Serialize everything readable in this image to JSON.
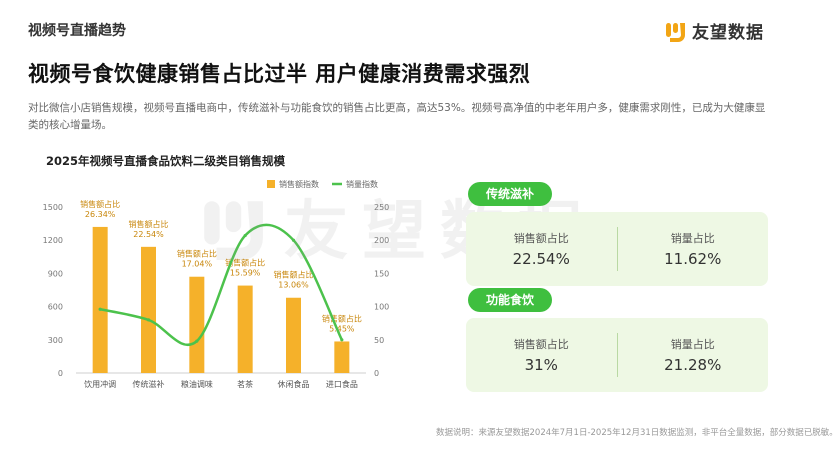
{
  "section_tag": "视频号直播趋势",
  "logo": {
    "text": "友望数据",
    "icon": "brand-logo-icon",
    "color": "#f2a515"
  },
  "headline": "视频号食饮健康销售占比过半   用户健康消费需求强烈",
  "description": "对比微信小店销售规模，视频号直播电商中，传统滋补与功能食饮的销售占比更高，高达53%。视频号高净值的中老年用户多，健康需求刚性，已成为大健康显类的核心增量场。",
  "colors": {
    "bar": "#f5b12a",
    "line": "#4cc24c",
    "pill": "#3fbf3f",
    "card_bg": "#eef8e4"
  },
  "chart_data": {
    "type": "bar",
    "title": "2025年视频号直播食品饮料二级类目销售规模",
    "categories": [
      "饮用冲调",
      "传统滋补",
      "粮油调味",
      "茗茶",
      "休闲食品",
      "进口食品"
    ],
    "series": [
      {
        "name": "销售额指数",
        "type": "bar",
        "axis": "left",
        "values": [
          1320,
          1140,
          870,
          790,
          680,
          285
        ]
      },
      {
        "name": "销量指数",
        "type": "line",
        "axis": "right",
        "values": [
          96,
          80,
          48,
          207,
          200,
          50
        ]
      }
    ],
    "data_labels": [
      {
        "label": "销售额占比",
        "value": "26.34%"
      },
      {
        "label": "销售额占比",
        "value": "22.54%"
      },
      {
        "label": "销售额占比",
        "value": "17.04%"
      },
      {
        "label": "销售额占比",
        "value": "15.59%"
      },
      {
        "label": "销售额占比",
        "value": "13.06%"
      },
      {
        "label": "销售额占比",
        "value": "5.45%"
      }
    ],
    "y_left": {
      "ylim": [
        0,
        1500
      ],
      "ticks": [
        "0",
        "300",
        "600",
        "900",
        "1200",
        "1500"
      ]
    },
    "y_right": {
      "ylim": [
        0,
        250
      ],
      "ticks": [
        "0",
        "50",
        "100",
        "150",
        "200",
        "250"
      ]
    },
    "legend_position": "top-right",
    "grid": false
  },
  "watermark": {
    "text": "友望数据"
  },
  "panels": [
    {
      "title": "传统滋补",
      "metrics": [
        {
          "label": "销售额占比",
          "value": "22.54%"
        },
        {
          "label": "销量占比",
          "value": "11.62%"
        }
      ]
    },
    {
      "title": "功能食饮",
      "metrics": [
        {
          "label": "销售额占比",
          "value": "31%"
        },
        {
          "label": "销量占比",
          "value": "21.28%"
        }
      ]
    }
  ],
  "footnote": "数据说明：来源友望数据2024年7月1日-2025年12月31日数据监测，非平台全量数据，部分数据已脱敏。"
}
